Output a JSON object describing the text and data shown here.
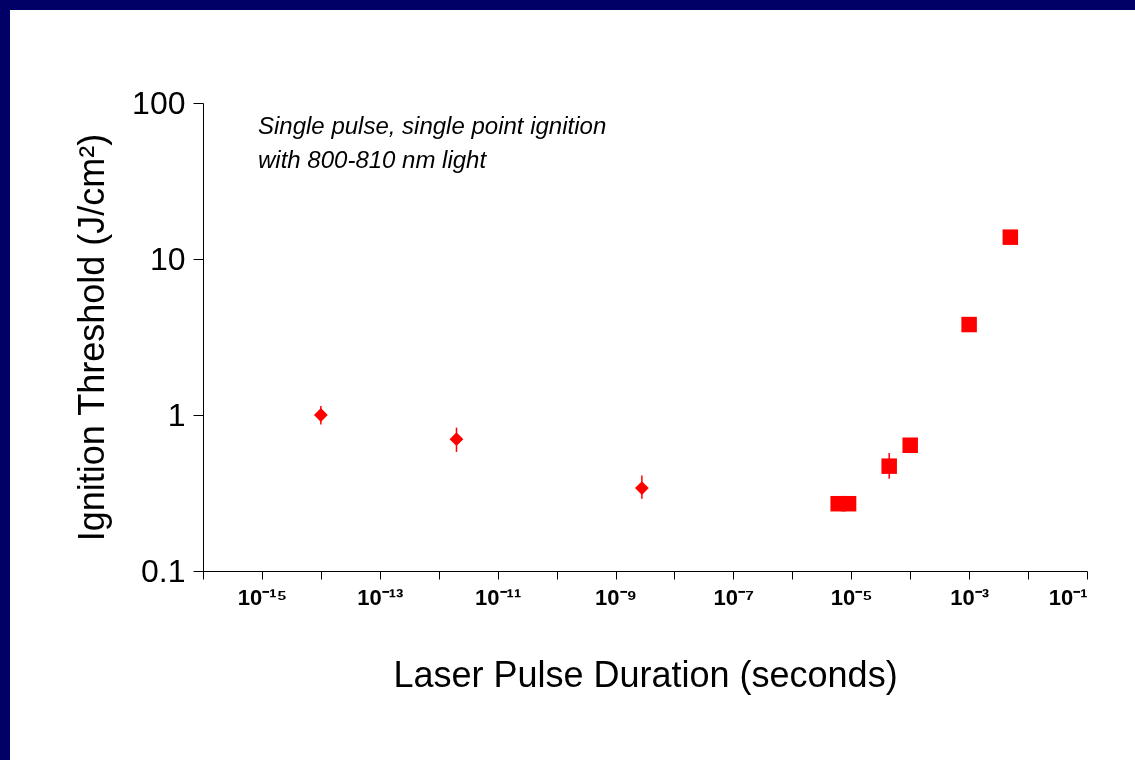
{
  "chart_data": {
    "type": "scatter",
    "xlabel": "Laser Pulse Duration (seconds)",
    "ylabel": "Ignition Threshold (J/cm²)",
    "annotations": [
      "Single pulse, single point ignition\nwith 800-810 nm light"
    ],
    "log": "xy",
    "grid": false,
    "xlim": [
      1e-16,
      0.1
    ],
    "ylim": [
      0.1,
      100
    ],
    "xticks": [
      {
        "value": 1e-16,
        "label": null
      },
      {
        "value": 1e-15,
        "label": "10⁻¹⁵"
      },
      {
        "value": 1e-14,
        "label": null
      },
      {
        "value": 1e-13,
        "label": "10⁻¹³"
      },
      {
        "value": 1e-12,
        "label": null
      },
      {
        "value": 1e-11,
        "label": "10⁻¹¹"
      },
      {
        "value": 1e-10,
        "label": null
      },
      {
        "value": 1e-09,
        "label": "10⁻⁹"
      },
      {
        "value": 1e-08,
        "label": null
      },
      {
        "value": 1e-07,
        "label": "10⁻⁷"
      },
      {
        "value": 1e-06,
        "label": null
      },
      {
        "value": 1e-05,
        "label": "10⁻⁵"
      },
      {
        "value": 0.0001,
        "label": null
      },
      {
        "value": 0.001,
        "label": "10⁻³"
      },
      {
        "value": 0.01,
        "label": null
      },
      {
        "value": 0.1,
        "label": "10⁻¹"
      }
    ],
    "yticks": [
      0.1,
      1,
      10,
      100
    ],
    "series": [
      {
        "color": "#ff0000",
        "marker": "diamond",
        "x": [
          1e-14,
          2e-12,
          2.8e-09
        ],
        "values": [
          1.0,
          0.7,
          0.34
        ],
        "errors": [
          [
            0.87,
            1.14
          ],
          [
            0.58,
            0.83
          ],
          [
            0.29,
            0.41
          ]
        ]
      },
      {
        "color": "#ff0000",
        "marker": "square",
        "x": [
          6e-06,
          9e-06,
          4.4e-05,
          0.0001,
          0.001,
          0.005
        ],
        "values": [
          0.27,
          0.27,
          0.47,
          0.64,
          3.8,
          13.8
        ],
        "errors": [
          null,
          null,
          [
            0.39,
            0.57
          ],
          null,
          null,
          null
        ]
      }
    ]
  }
}
